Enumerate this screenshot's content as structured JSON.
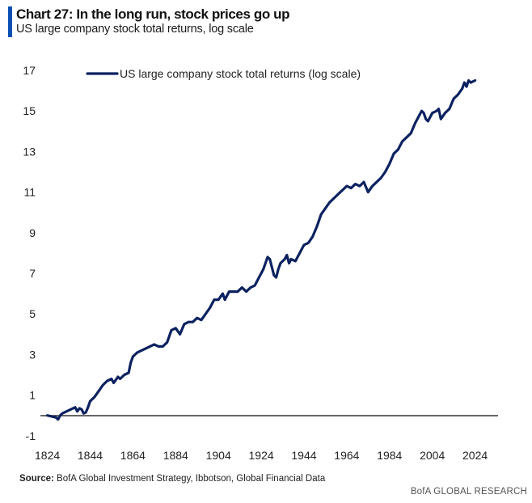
{
  "header": {
    "title": "Chart 27: In the long run, stock prices go up",
    "subtitle": "US large company stock total returns, log scale"
  },
  "footer": {
    "source_label": "Source:",
    "source_text": "BofA Global Investment Strategy, Ibbotson,  Global Financial Data",
    "brand": "BofA GLOBAL RESEARCH"
  },
  "colors": {
    "series": "#0c2260",
    "accent": "#0a4fb3",
    "axis": "#222222"
  },
  "chart_data": {
    "type": "line",
    "title": "",
    "xlabel": "",
    "ylabel": "",
    "xlim": [
      1820,
      2035
    ],
    "ylim": [
      -1,
      17
    ],
    "x_ticks": [
      1824,
      1844,
      1864,
      1884,
      1904,
      1924,
      1944,
      1964,
      1984,
      2004,
      2024
    ],
    "y_ticks": [
      -1,
      1,
      3,
      5,
      7,
      9,
      11,
      13,
      15,
      17
    ],
    "grid": false,
    "legend": "top-left",
    "series": [
      {
        "name": "US large company stock total returns (log scale)",
        "x": [
          1824,
          1826,
          1828,
          1829,
          1830,
          1831,
          1833,
          1835,
          1837,
          1838,
          1839,
          1840,
          1841,
          1842,
          1843,
          1844,
          1846,
          1848,
          1850,
          1852,
          1854,
          1855,
          1857,
          1858,
          1860,
          1862,
          1863,
          1864,
          1866,
          1868,
          1870,
          1872,
          1874,
          1876,
          1878,
          1880,
          1882,
          1884,
          1886,
          1888,
          1890,
          1892,
          1894,
          1896,
          1898,
          1900,
          1902,
          1904,
          1906,
          1907,
          1909,
          1911,
          1913,
          1915,
          1917,
          1919,
          1921,
          1923,
          1925,
          1927,
          1928,
          1929,
          1930,
          1931,
          1932,
          1933,
          1935,
          1936,
          1937,
          1938,
          1940,
          1942,
          1944,
          1946,
          1948,
          1950,
          1952,
          1954,
          1956,
          1958,
          1960,
          1962,
          1964,
          1966,
          1968,
          1970,
          1972,
          1974,
          1976,
          1978,
          1980,
          1982,
          1984,
          1986,
          1988,
          1990,
          1992,
          1994,
          1996,
          1998,
          1999,
          2000,
          2001,
          2002,
          2004,
          2006,
          2007,
          2008,
          2010,
          2012,
          2014,
          2016,
          2018,
          2019,
          2020,
          2021,
          2022,
          2024
        ],
        "y": [
          0,
          -0.05,
          -0.1,
          -0.2,
          0,
          0.1,
          0.2,
          0.3,
          0.4,
          0.2,
          0.35,
          0.3,
          0.1,
          0.15,
          0.4,
          0.7,
          0.9,
          1.2,
          1.5,
          1.7,
          1.8,
          1.6,
          1.9,
          1.8,
          2.0,
          2.1,
          2.6,
          2.9,
          3.1,
          3.2,
          3.3,
          3.4,
          3.5,
          3.4,
          3.4,
          3.6,
          4.2,
          4.3,
          4.0,
          4.5,
          4.6,
          4.6,
          4.8,
          4.7,
          5.0,
          5.3,
          5.7,
          5.7,
          6.0,
          5.7,
          6.1,
          6.1,
          6.1,
          6.3,
          6.1,
          6.3,
          6.4,
          6.8,
          7.2,
          7.8,
          7.7,
          7.3,
          6.9,
          6.8,
          7.2,
          7.5,
          7.7,
          7.9,
          7.5,
          7.7,
          7.6,
          8.0,
          8.4,
          8.5,
          8.8,
          9.3,
          9.9,
          10.2,
          10.5,
          10.7,
          10.9,
          11.1,
          11.3,
          11.2,
          11.4,
          11.3,
          11.5,
          11.0,
          11.3,
          11.5,
          11.7,
          12.0,
          12.4,
          12.9,
          13.1,
          13.5,
          13.7,
          13.9,
          14.4,
          14.8,
          15.0,
          14.9,
          14.6,
          14.5,
          14.9,
          15.0,
          15.1,
          14.6,
          14.9,
          15.1,
          15.6,
          15.8,
          16.1,
          16.4,
          16.2,
          16.5,
          16.4,
          16.5
        ]
      }
    ]
  }
}
